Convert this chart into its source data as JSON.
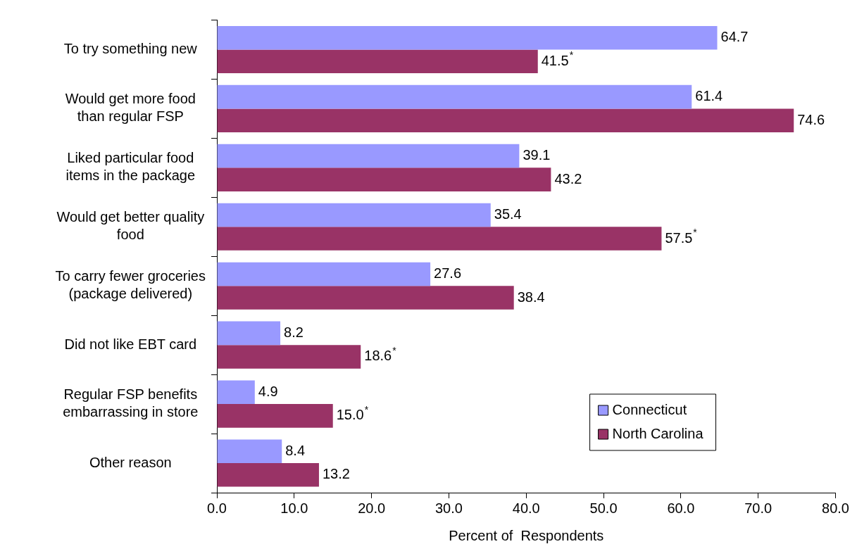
{
  "chart_data": {
    "type": "bar",
    "orientation": "horizontal",
    "xlabel": "Percent of  Respondents",
    "categories": [
      "To try something new",
      "Would get more food\nthan regular FSP",
      "Liked particular food\nitems in the package",
      "Would get better quality\nfood",
      "To carry fewer groceries\n(package delivered)",
      "Did not like EBT card",
      "Regular FSP benefits\nembarrassing in store",
      "Other reason"
    ],
    "series": [
      {
        "name": "Connecticut",
        "color": "#9999ff",
        "values": [
          64.7,
          61.4,
          39.1,
          35.4,
          27.6,
          8.2,
          4.9,
          8.4
        ],
        "value_labels": [
          "64.7",
          "61.4",
          "39.1",
          "35.4",
          "27.6",
          "8.2",
          "4.9",
          "8.4"
        ]
      },
      {
        "name": "North Carolina",
        "color": "#993366",
        "values": [
          41.5,
          74.6,
          43.2,
          57.5,
          38.4,
          18.6,
          15.0,
          13.2
        ],
        "value_labels": [
          "41.5$^{*}$",
          "74.6",
          "43.2",
          "57.5$^{*}$",
          "38.4",
          "18.6$^{*}$",
          "15.0$^{*}$",
          "13.2"
        ]
      }
    ],
    "xlim": [
      0,
      80
    ],
    "xticks": [
      {
        "value": 0,
        "label": "0.0"
      },
      {
        "value": 10,
        "label": "10.0"
      },
      {
        "value": 20,
        "label": "20.0"
      },
      {
        "value": 30,
        "label": "30.0"
      },
      {
        "value": 40,
        "label": "40.0"
      },
      {
        "value": 50,
        "label": "50.0"
      },
      {
        "value": 60,
        "label": "60.0"
      },
      {
        "value": 70,
        "label": "70.0"
      },
      {
        "value": 80,
        "label": "80.0"
      }
    ],
    "grid": false,
    "legend": "bottom right"
  }
}
